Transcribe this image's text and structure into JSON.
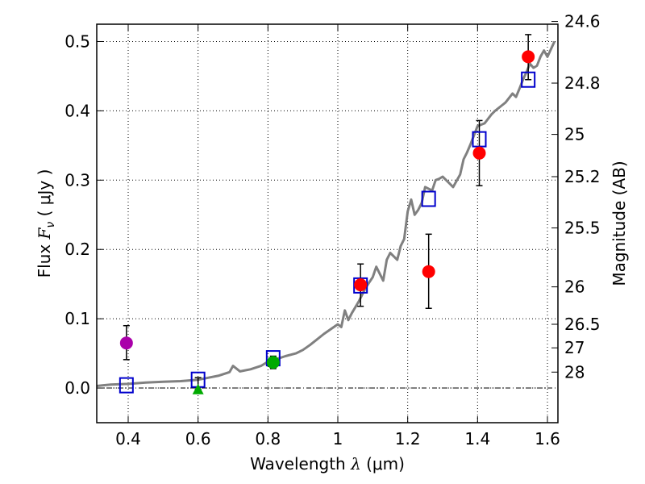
{
  "chart_data": {
    "type": "scatter",
    "xlabel": "Wavelength",
    "xlabel_symbol": "λ",
    "xlabel_unit": "(μm)",
    "ylabel": "Flux",
    "ylabel_symbol": "F",
    "ylabel_subscript": "ν",
    "ylabel_unit": "( μJy )",
    "ylabel_right": "Magnitude (AB)",
    "xlim": [
      0.31,
      1.63
    ],
    "ylim": [
      -0.05,
      0.525
    ],
    "grid": true,
    "x_ticks": [
      0.4,
      0.6,
      0.8,
      1.0,
      1.2,
      1.4,
      1.6
    ],
    "x_tick_labels": [
      "0.4",
      "0.6",
      "0.8",
      "1",
      "1.2",
      "1.4",
      "1.6"
    ],
    "y_ticks": [
      0.0,
      0.1,
      0.2,
      0.3,
      0.4,
      0.5
    ],
    "y_tick_labels": [
      "0.0",
      "0.1",
      "0.2",
      "0.3",
      "0.4",
      "0.5"
    ],
    "right_ticks": [
      {
        "label": "24.6",
        "flux": 0.529
      },
      {
        "label": "24.8",
        "flux": 0.44
      },
      {
        "label": "25",
        "flux": 0.366
      },
      {
        "label": "25.2",
        "flux": 0.305
      },
      {
        "label": "25.5",
        "flux": 0.231
      },
      {
        "label": "26",
        "flux": 0.146
      },
      {
        "label": "26.5",
        "flux": 0.092
      },
      {
        "label": "27",
        "flux": 0.058
      },
      {
        "label": "28",
        "flux": 0.023
      }
    ],
    "zero_line": 0.0,
    "model_spectrum": {
      "name": "model SED",
      "color": "#808080",
      "x": [
        0.31,
        0.35,
        0.4,
        0.45,
        0.5,
        0.55,
        0.6,
        0.63,
        0.66,
        0.69,
        0.7,
        0.72,
        0.75,
        0.78,
        0.8,
        0.82,
        0.85,
        0.88,
        0.9,
        0.92,
        0.94,
        0.96,
        0.98,
        1.0,
        1.01,
        1.02,
        1.03,
        1.04,
        1.06,
        1.08,
        1.1,
        1.11,
        1.12,
        1.13,
        1.14,
        1.15,
        1.17,
        1.18,
        1.19,
        1.2,
        1.21,
        1.22,
        1.23,
        1.24,
        1.25,
        1.27,
        1.28,
        1.29,
        1.3,
        1.32,
        1.33,
        1.35,
        1.36,
        1.37,
        1.38,
        1.4,
        1.42,
        1.44,
        1.45,
        1.47,
        1.48,
        1.5,
        1.51,
        1.52,
        1.53,
        1.54,
        1.55,
        1.56,
        1.57,
        1.58,
        1.59,
        1.6,
        1.62
      ],
      "y": [
        0.003,
        0.005,
        0.006,
        0.008,
        0.009,
        0.01,
        0.012,
        0.015,
        0.018,
        0.023,
        0.032,
        0.024,
        0.027,
        0.032,
        0.038,
        0.041,
        0.046,
        0.05,
        0.055,
        0.062,
        0.07,
        0.078,
        0.085,
        0.092,
        0.088,
        0.112,
        0.098,
        0.108,
        0.125,
        0.145,
        0.16,
        0.175,
        0.165,
        0.155,
        0.185,
        0.195,
        0.185,
        0.205,
        0.215,
        0.255,
        0.272,
        0.25,
        0.257,
        0.267,
        0.29,
        0.285,
        0.3,
        0.302,
        0.305,
        0.295,
        0.29,
        0.308,
        0.33,
        0.34,
        0.352,
        0.378,
        0.382,
        0.395,
        0.4,
        0.408,
        0.412,
        0.425,
        0.42,
        0.432,
        0.445,
        0.456,
        0.468,
        0.462,
        0.465,
        0.478,
        0.487,
        0.478,
        0.5
      ]
    },
    "series": [
      {
        "name": "model band fluxes",
        "marker": "open-square",
        "color": "#0000cc",
        "x": [
          0.395,
          0.6,
          0.815,
          1.065,
          1.26,
          1.405,
          1.545
        ],
        "y": [
          0.004,
          0.012,
          0.043,
          0.148,
          0.273,
          0.359,
          0.445
        ]
      },
      {
        "name": "red detections",
        "marker": "circle",
        "color": "#ff0000",
        "x": [
          1.065,
          1.26,
          1.405,
          1.545
        ],
        "y": [
          0.149,
          0.168,
          0.339,
          0.478
        ],
        "yerr_low": [
          0.031,
          0.053,
          0.047,
          0.033
        ],
        "yerr_high": [
          0.03,
          0.054,
          0.047,
          0.032
        ]
      },
      {
        "name": "magenta point",
        "marker": "circle",
        "color": "#aa00aa",
        "x": [
          0.395
        ],
        "y": [
          0.065
        ],
        "yerr_low": [
          0.024
        ],
        "yerr_high": [
          0.025
        ]
      },
      {
        "name": "green point",
        "marker": "circle",
        "color": "#00aa00",
        "x": [
          0.815
        ],
        "y": [
          0.037
        ],
        "yerr_low": [
          0.009
        ],
        "yerr_high": [
          0.009
        ]
      },
      {
        "name": "green triangle",
        "marker": "triangle",
        "color": "#00aa00",
        "x": [
          0.6
        ],
        "y": [
          -0.002
        ],
        "yerr_low": [
          0.0
        ],
        "yerr_high": [
          0.017
        ]
      }
    ]
  }
}
